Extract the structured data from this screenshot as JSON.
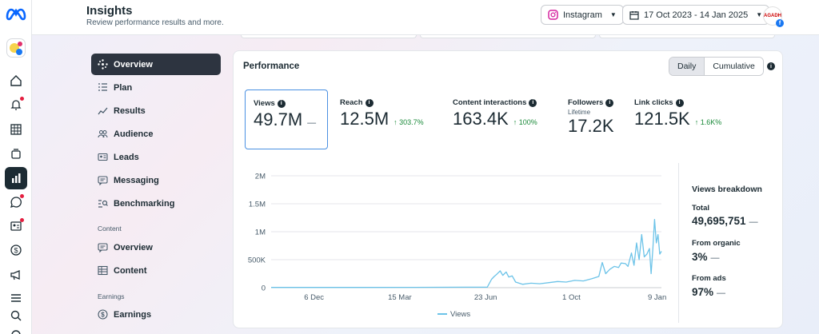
{
  "header": {
    "title": "Insights",
    "subtitle": "Review performance results and more.",
    "platform": "Instagram",
    "date_range": "17 Oct 2023 - 14 Jan 2025",
    "avatar_text": "AGADH"
  },
  "nav": {
    "items": [
      {
        "label": "Overview",
        "icon": "sparkle-icon",
        "active": true
      },
      {
        "label": "Plan",
        "icon": "list-icon"
      },
      {
        "label": "Results",
        "icon": "trend-icon"
      },
      {
        "label": "Audience",
        "icon": "people-icon"
      },
      {
        "label": "Leads",
        "icon": "id-card-icon"
      },
      {
        "label": "Messaging",
        "icon": "chat-icon"
      },
      {
        "label": "Benchmarking",
        "icon": "benchmark-icon"
      }
    ],
    "content_section": "Content",
    "content_items": [
      {
        "label": "Overview",
        "icon": "chat-icon"
      },
      {
        "label": "Content",
        "icon": "table-icon"
      }
    ],
    "earnings_section": "Earnings",
    "earnings_items": [
      {
        "label": "Earnings",
        "icon": "dollar-icon"
      }
    ]
  },
  "performance": {
    "title": "Performance",
    "toggle": {
      "daily": "Daily",
      "cumulative": "Cumulative",
      "selected": "Daily"
    },
    "metrics": [
      {
        "label": "Views",
        "value": "49.7M",
        "delta": "—",
        "selected": true
      },
      {
        "label": "Reach",
        "value": "12.5M",
        "delta": "↑ 303.7%"
      },
      {
        "label": "Content interactions",
        "value": "163.4K",
        "delta": "↑ 100%"
      },
      {
        "label": "Followers",
        "sublabel": "Lifetime",
        "value": "17.2K",
        "delta": ""
      },
      {
        "label": "Link clicks",
        "value": "121.5K",
        "delta": "↑ 1.6K%"
      }
    ]
  },
  "breakdown": {
    "title": "Views breakdown",
    "total_label": "Total",
    "total_value": "49,695,751",
    "organic_label": "From organic",
    "organic_value": "3%",
    "ads_label": "From ads",
    "ads_value": "97%",
    "dash": "—"
  },
  "chart_data": {
    "type": "line",
    "title": "",
    "xlabel": "",
    "ylabel": "",
    "y_ticks": [
      "0",
      "500K",
      "1M",
      "1.5M",
      "2M"
    ],
    "y_tick_values": [
      0,
      500000,
      1000000,
      1500000,
      2000000
    ],
    "ylim": [
      0,
      2000000
    ],
    "x_ticks": [
      "6 Dec",
      "15 Mar",
      "23 Jun",
      "1 Oct",
      "9 Jan"
    ],
    "x_tick_dates": [
      "2023-12-06",
      "2024-03-15",
      "2024-06-23",
      "2024-10-01",
      "2025-01-09"
    ],
    "xlim": [
      "2023-10-17",
      "2025-01-14"
    ],
    "grid": true,
    "legend": "bottom-center",
    "series": [
      {
        "name": "Views",
        "color": "#6cc3e8",
        "points": [
          [
            "2023-10-17",
            5000
          ],
          [
            "2023-12-01",
            5000
          ],
          [
            "2024-02-01",
            5000
          ],
          [
            "2024-04-01",
            6000
          ],
          [
            "2024-06-01",
            8000
          ],
          [
            "2024-06-25",
            10000
          ],
          [
            "2024-06-30",
            150000
          ],
          [
            "2024-07-03",
            200000
          ],
          [
            "2024-07-06",
            240000
          ],
          [
            "2024-07-10",
            300000
          ],
          [
            "2024-07-13",
            220000
          ],
          [
            "2024-07-17",
            280000
          ],
          [
            "2024-07-20",
            190000
          ],
          [
            "2024-07-24",
            210000
          ],
          [
            "2024-07-28",
            100000
          ],
          [
            "2024-08-05",
            60000
          ],
          [
            "2024-08-15",
            80000
          ],
          [
            "2024-08-25",
            70000
          ],
          [
            "2024-09-05",
            90000
          ],
          [
            "2024-09-15",
            110000
          ],
          [
            "2024-09-25",
            100000
          ],
          [
            "2024-10-05",
            130000
          ],
          [
            "2024-10-15",
            120000
          ],
          [
            "2024-10-25",
            160000
          ],
          [
            "2024-11-02",
            200000
          ],
          [
            "2024-11-06",
            450000
          ],
          [
            "2024-11-10",
            250000
          ],
          [
            "2024-11-15",
            330000
          ],
          [
            "2024-11-20",
            380000
          ],
          [
            "2024-11-25",
            360000
          ],
          [
            "2024-11-28",
            440000
          ],
          [
            "2024-12-03",
            430000
          ],
          [
            "2024-12-06",
            380000
          ],
          [
            "2024-12-10",
            620000
          ],
          [
            "2024-12-13",
            400000
          ],
          [
            "2024-12-16",
            800000
          ],
          [
            "2024-12-19",
            500000
          ],
          [
            "2024-12-22",
            950000
          ],
          [
            "2024-12-25",
            550000
          ],
          [
            "2024-12-28",
            600000
          ],
          [
            "2024-12-31",
            700000
          ],
          [
            "2025-01-02",
            250000
          ],
          [
            "2025-01-04",
            700000
          ],
          [
            "2025-01-06",
            1220000
          ],
          [
            "2025-01-08",
            800000
          ],
          [
            "2025-01-10",
            950000
          ],
          [
            "2025-01-12",
            600000
          ],
          [
            "2025-01-14",
            650000
          ]
        ]
      }
    ]
  },
  "colors": {
    "accent": "#4a90e2",
    "line": "#6cc3e8",
    "positive": "#1b8a3a",
    "dark": "#1c2b33"
  }
}
